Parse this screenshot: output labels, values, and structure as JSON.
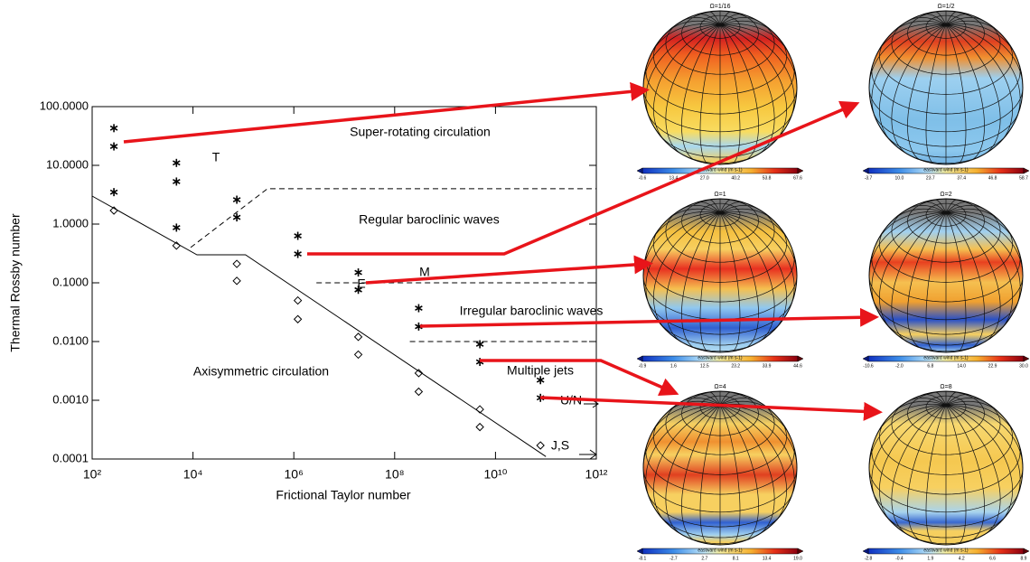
{
  "chart_data": {
    "type": "scatter",
    "xlabel": "Frictional Taylor number",
    "ylabel": "Thermal Rossby number",
    "xscale": "log",
    "yscale": "log",
    "xlim": [
      100,
      1000000000000
    ],
    "ylim": [
      0.0001,
      100
    ],
    "xticks": [
      {
        "value": 100,
        "label": "10²"
      },
      {
        "value": 10000,
        "label": "10⁴"
      },
      {
        "value": 1000000,
        "label": "10⁶"
      },
      {
        "value": 100000000,
        "label": "10⁸"
      },
      {
        "value": 10000000000,
        "label": "10¹⁰"
      },
      {
        "value": 1000000000000,
        "label": "10¹²"
      }
    ],
    "yticks": [
      {
        "value": 0.0001,
        "label": "0.0001"
      },
      {
        "value": 0.001,
        "label": "0.0010"
      },
      {
        "value": 0.01,
        "label": "0.0100"
      },
      {
        "value": 0.1,
        "label": "0.1000"
      },
      {
        "value": 1,
        "label": "1.0000"
      },
      {
        "value": 10,
        "label": "10.0000"
      },
      {
        "value": 100,
        "label": "100.0000"
      }
    ],
    "grid": false,
    "series": [
      {
        "marker": "asterisk",
        "color": "#000000",
        "x": [
          270,
          270,
          270,
          4700,
          4700,
          4700,
          74000,
          74000,
          1200000,
          1200000,
          19000000,
          19000000,
          300000000,
          300000000,
          4900000000,
          4900000000,
          78000000000,
          78000000000
        ],
        "values": [
          43,
          21,
          3.5,
          11,
          5.3,
          0.87,
          2.6,
          1.3,
          0.63,
          0.31,
          0.15,
          0.076,
          0.037,
          0.018,
          0.009,
          0.0045,
          0.0022,
          0.0011
        ]
      },
      {
        "marker": "diamond",
        "color": "#000000",
        "x": [
          270,
          4700,
          74000,
          74000,
          1200000,
          1200000,
          19000000,
          19000000,
          300000000,
          300000000,
          4900000000,
          4900000000,
          78000000000
        ],
        "values": [
          1.7,
          0.43,
          0.21,
          0.108,
          0.05,
          0.024,
          0.012,
          0.006,
          0.0029,
          0.0014,
          0.0007,
          0.00035,
          0.00017
        ]
      }
    ],
    "lines": [
      {
        "style": "solid",
        "x": [
          100,
          12000,
          110000,
          100000000000
        ],
        "y": [
          3,
          0.3,
          0.3,
          0.00011
        ]
      },
      {
        "style": "dashed",
        "x": [
          9000,
          300000,
          1000000000000
        ],
        "y": [
          0.4,
          4,
          4
        ]
      },
      {
        "style": "dashed",
        "x": [
          2800000,
          1000000000000
        ],
        "y": [
          0.1,
          0.1
        ]
      },
      {
        "style": "dashed",
        "x": [
          200000000,
          1000000000000
        ],
        "y": [
          0.01,
          0.01
        ]
      }
    ],
    "annotations": [
      "Super-rotating circulation",
      "T",
      "Regular baroclinic waves",
      "M",
      "E",
      "Irregular baroclinic waves",
      "Axisymmetric circulation",
      "Multiple jets",
      "U/N",
      "J,S"
    ]
  },
  "panels": [
    {
      "title": "Ω=1/16",
      "colorbar_label": "eastward wind (m s-1)",
      "colorbar_ticks": [
        "-0.6",
        "13.4",
        "27.0",
        "40.2",
        "53.8",
        "67.6"
      ]
    },
    {
      "title": "Ω=1/2",
      "colorbar_label": "eastward wind (m s-1)",
      "colorbar_ticks": [
        "-3.7",
        "10.0",
        "23.7",
        "37.4",
        "46.8",
        "58.7"
      ]
    },
    {
      "title": "Ω=1",
      "colorbar_label": "eastward wind (m s-1)",
      "colorbar_ticks": [
        "-0.9",
        "1.6",
        "12.5",
        "23.2",
        "33.9",
        "44.6"
      ]
    },
    {
      "title": "Ω=2",
      "colorbar_label": "eastward wind (m s-1)",
      "colorbar_ticks": [
        "-10.6",
        "-2.0",
        "6.8",
        "14.0",
        "22.9",
        "30.0"
      ]
    },
    {
      "title": "Ω=4",
      "colorbar_label": "eastward wind (m s-1)",
      "colorbar_ticks": [
        "-8.1",
        "-2.7",
        "2.7",
        "8.1",
        "13.4",
        "19.0"
      ]
    },
    {
      "title": "Ω=8",
      "colorbar_label": "eastward wind (m s-1)",
      "colorbar_ticks": [
        "-2.8",
        "-0.4",
        "1.9",
        "4.2",
        "6.6",
        "8.9"
      ]
    }
  ]
}
